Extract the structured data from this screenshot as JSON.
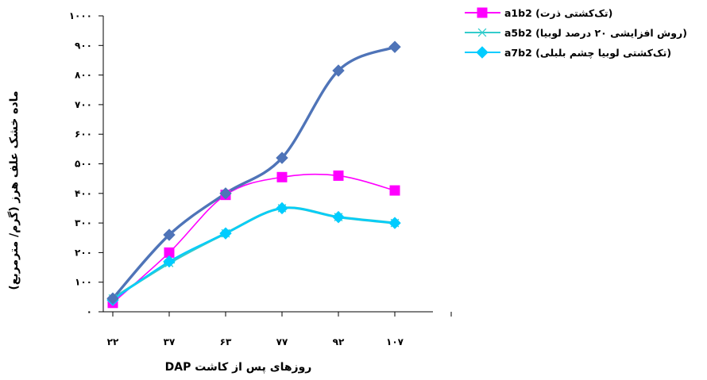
{
  "chart_data": {
    "type": "line",
    "xlabel": "روزهای پس از کاشت DAP",
    "ylabel": "ماده خشک علف هرز (گرم/ مترمربع)",
    "categories": [
      "۲۲",
      "۳۷",
      "۶۳",
      "۷۷",
      "۹۲",
      "۱۰۷"
    ],
    "y_ticks": [
      "۰",
      "۱۰۰",
      "۲۰۰",
      "۳۰۰",
      "۴۰۰",
      "۵۰۰",
      "۶۰۰",
      "۷۰۰",
      "۸۰۰",
      "۹۰۰",
      "۱۰۰۰"
    ],
    "ylim": [
      0,
      1000
    ],
    "legend_position": "top-right",
    "series": [
      {
        "name": "a1b2",
        "legend_label": "(تک‌کشتی ذرت) a1b2",
        "color": "#ff00ff",
        "marker": "square",
        "values": [
          30,
          200,
          395,
          455,
          460,
          410
        ]
      },
      {
        "name": "a5b2",
        "legend_label": "(روش افزایشی ۲۰ درصد لوبیا) a5b2",
        "color": "#33cccc",
        "marker": "asterisk",
        "values": [
          45,
          165,
          265,
          350,
          320,
          300
        ]
      },
      {
        "name": "a7b2",
        "legend_label": "(تک‌کشتی لوبیا چشم بلبلی) a7b2",
        "color": "#00ccff",
        "marker": "diamond",
        "values": [
          40,
          170,
          265,
          350,
          320,
          300
        ]
      },
      {
        "name": "",
        "legend_label": "",
        "color": "#4f74b8",
        "marker": "diamond",
        "values": [
          45,
          260,
          400,
          520,
          815,
          895
        ]
      }
    ]
  }
}
